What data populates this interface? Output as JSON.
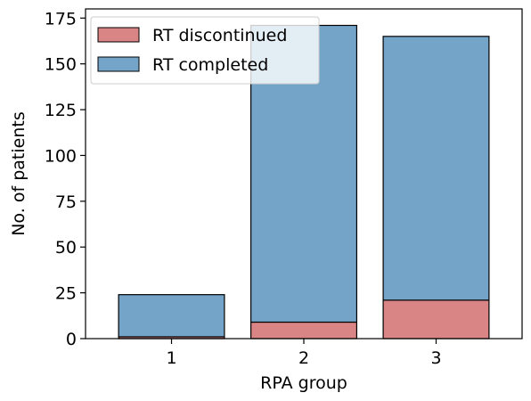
{
  "chart_data": {
    "type": "bar",
    "stacked": true,
    "categories": [
      "1",
      "2",
      "3"
    ],
    "series": [
      {
        "name": "RT discontinued",
        "values": [
          1,
          9,
          21
        ],
        "color": "#d98585"
      },
      {
        "name": "RT completed",
        "values": [
          23,
          162,
          144
        ],
        "color": "#74a4c8"
      }
    ],
    "xlabel": "RPA group",
    "ylabel": "No. of patients",
    "ylim": [
      0,
      180
    ],
    "yticks": [
      0,
      25,
      50,
      75,
      100,
      125,
      150,
      175
    ],
    "grid": false,
    "legend_position": "top-left"
  }
}
